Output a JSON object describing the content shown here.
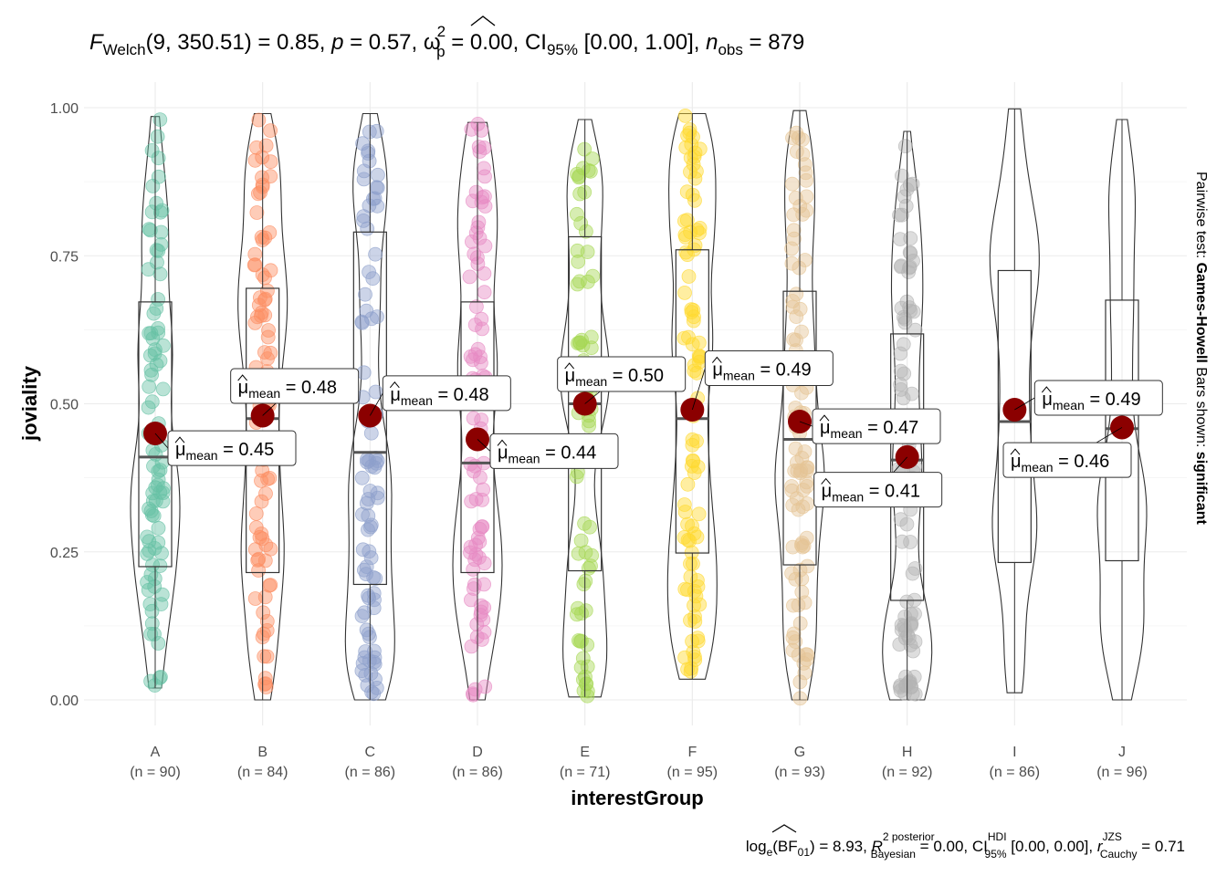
{
  "title": {
    "text": "F Welch (9, 350.51) = 0.85, p = 0.57, ω̂²p = 0.00, CI95% [0.00, 1.00], n obs = 879",
    "parts": {
      "F": "F",
      "welch": "Welch",
      "args": "(9, 350.51)",
      "eq1": " = 0.85, ",
      "p": "p",
      "eq2": " = 0.57, ",
      "omega": "ω",
      "omega_sup": "2",
      "omega_sub": "p",
      "eq3": " = 0.00, CI",
      "ci_sub": "95%",
      "ci": " [0.00, 1.00], ",
      "n": "n",
      "n_sub": "obs",
      "eq4": " = 879"
    }
  },
  "caption": {
    "text": "loge(BF01) = 8.93, R̂² posterior Bayesian = 0.00, CI HDI 95% [0.00, 0.00], r JZS Cauchy = 0.71",
    "parts": {
      "log": "log",
      "log_sub": "e",
      "bf": "(BF",
      "bf_sub": "01",
      "bf_eq": ") = 8.93, ",
      "R": "R",
      "R_sup": "2 posterior",
      "R_sub": "Bayesian",
      "R_eq": " = 0.00, CI",
      "ci_sup": "HDI",
      "ci_sub": "95%",
      "ci_eq": " [0.00, 0.00], ",
      "r": "r",
      "r_sup": "JZS",
      "r_sub": "Cauchy",
      "r_eq": " = 0.71"
    }
  },
  "side_label": {
    "prefix": "Pairwise test: ",
    "test": "Games-Howell",
    "middle": " Bars shown: ",
    "bars": "significant"
  },
  "mean_label_parts": {
    "mu": "μ",
    "sub": "mean",
    "eq": " = "
  },
  "chart_data": {
    "type": "violin-box-scatter",
    "xlabel": "interestGroup",
    "ylabel": "joviality",
    "ylim": [
      0,
      1
    ],
    "y_ticks": [
      0.0,
      0.25,
      0.5,
      0.75,
      1.0
    ],
    "y_tick_labels": [
      "0.00",
      "0.25",
      "0.50",
      "0.75",
      "1.00"
    ],
    "grid": true,
    "mean_point_color": "#8b0000",
    "groups": [
      {
        "name": "A",
        "n_label": "(n = 90)",
        "n": 90,
        "color": "#66c2a5",
        "mean": 0.45,
        "mean_label": "0.45",
        "q1": 0.225,
        "median": 0.41,
        "q3": 0.672,
        "min": 0.02,
        "max": 0.985,
        "label_side": "right",
        "label_y": 0.425
      },
      {
        "name": "B",
        "n_label": "(n = 84)",
        "n": 84,
        "color": "#fc8d62",
        "mean": 0.48,
        "mean_label": "0.48",
        "q1": 0.215,
        "median": 0.475,
        "q3": 0.695,
        "min": 0.0,
        "max": 0.99,
        "label_side": "left",
        "label_y": 0.53
      },
      {
        "name": "C",
        "n_label": "(n = 86)",
        "n": 86,
        "color": "#8da0cb",
        "mean": 0.48,
        "mean_label": "0.48",
        "q1": 0.195,
        "median": 0.418,
        "q3": 0.79,
        "min": 0.0,
        "max": 0.99,
        "label_side": "right",
        "label_y": 0.518
      },
      {
        "name": "D",
        "n_label": "(n = 86)",
        "n": 86,
        "color": "#e78ac3",
        "mean": 0.44,
        "mean_label": "0.44",
        "q1": 0.215,
        "median": 0.4,
        "q3": 0.672,
        "min": 0.0,
        "max": 0.975,
        "label_side": "right",
        "label_y": 0.42
      },
      {
        "name": "E",
        "n_label": "(n = 71)",
        "n": 71,
        "color": "#a6d854",
        "mean": 0.5,
        "mean_label": "0.50",
        "q1": 0.218,
        "median": 0.5,
        "q3": 0.782,
        "min": 0.005,
        "max": 0.98,
        "label_side": "left",
        "label_y": 0.55
      },
      {
        "name": "F",
        "n_label": "(n = 95)",
        "n": 95,
        "color": "#ffd92f",
        "mean": 0.49,
        "mean_label": "0.49",
        "q1": 0.248,
        "median": 0.475,
        "q3": 0.76,
        "min": 0.035,
        "max": 0.99,
        "label_side": "right",
        "label_y": 0.56
      },
      {
        "name": "G",
        "n_label": "(n = 93)",
        "n": 93,
        "color": "#e5c494",
        "mean": 0.47,
        "mean_label": "0.47",
        "q1": 0.228,
        "median": 0.44,
        "q3": 0.69,
        "min": 0.0,
        "max": 0.995,
        "label_side": "right",
        "label_y": 0.462
      },
      {
        "name": "H",
        "n_label": "(n = 92)",
        "n": 92,
        "color": "#b3b3b3",
        "mean": 0.41,
        "mean_label": "0.41",
        "q1": 0.168,
        "median": 0.405,
        "q3": 0.618,
        "min": 0.0,
        "max": 0.96,
        "label_side": "left",
        "label_y": 0.355
      },
      {
        "name": "I",
        "n_label": "(n = 86)",
        "n": 86,
        "color": "#ffffff",
        "mean": 0.49,
        "mean_label": "0.49",
        "q1": 0.232,
        "median": 0.47,
        "q3": 0.725,
        "min": 0.012,
        "max": 0.998,
        "label_side": "right",
        "label_y": 0.51
      },
      {
        "name": "J",
        "n_label": "(n = 96)",
        "n": 96,
        "color": "#ffffff",
        "mean": 0.46,
        "mean_label": "0.46",
        "q1": 0.235,
        "median": 0.458,
        "q3": 0.675,
        "min": 0.0,
        "max": 0.98,
        "label_side": "left",
        "label_y": 0.405
      }
    ]
  }
}
